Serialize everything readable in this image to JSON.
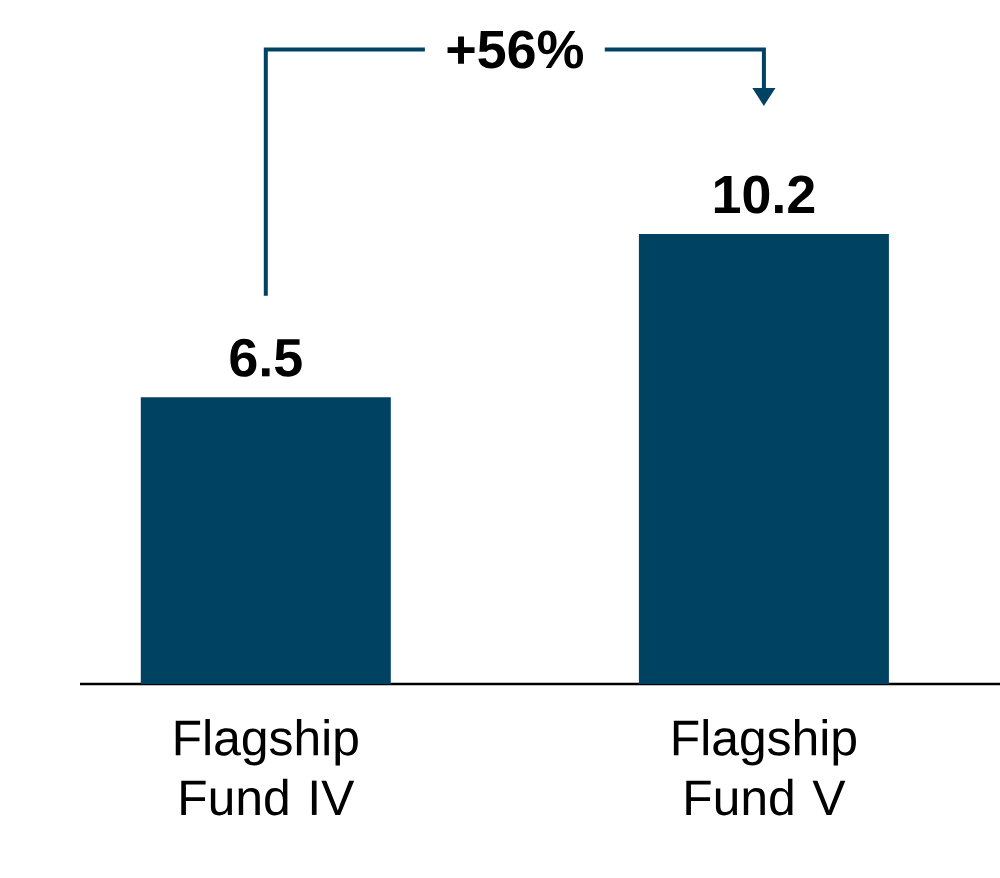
{
  "chart_data": {
    "type": "bar",
    "categories": [
      "Flagship Fund IV",
      "Flagship Fund V"
    ],
    "values": [
      6.5,
      10.2
    ],
    "color": "#004262",
    "data_labels": true,
    "annotations": [
      "+56%"
    ]
  }
}
